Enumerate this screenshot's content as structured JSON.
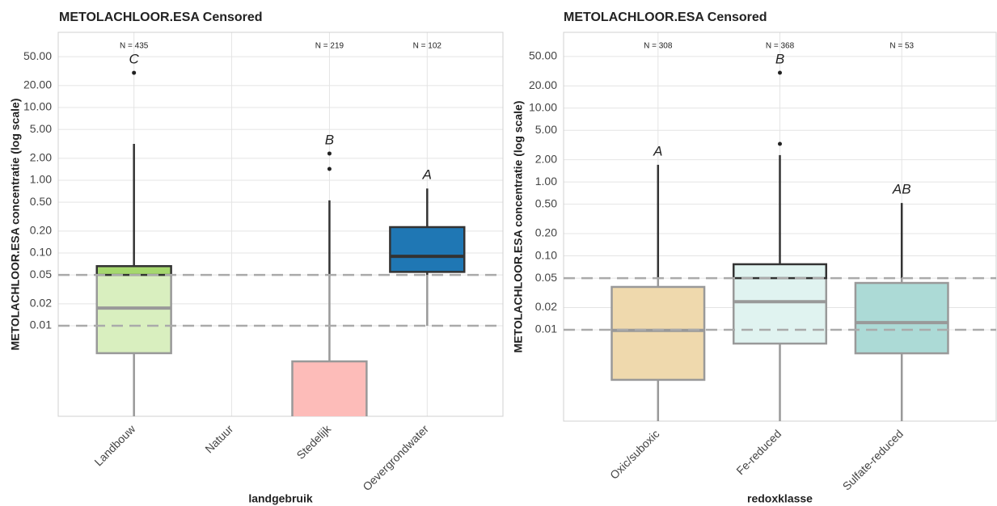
{
  "chart_data": [
    {
      "type": "box",
      "title": "METOLACHLOOR.ESA Censored",
      "x_label": "landgebruik",
      "y_label": "METOLACHLOOR.ESA concentratie (log scale)",
      "log_scale": true,
      "grid": true,
      "ylim": [
        0.00057,
        108
      ],
      "yticks": [
        {
          "value": 50,
          "label": "50.00"
        },
        {
          "value": 20,
          "label": "20.00"
        },
        {
          "value": 10,
          "label": "10.00"
        },
        {
          "value": 5,
          "label": "5.00"
        },
        {
          "value": 2,
          "label": "2.00"
        },
        {
          "value": 1,
          "label": "1.00"
        },
        {
          "value": 0.5,
          "label": "0.50"
        },
        {
          "value": 0.2,
          "label": "0.20"
        },
        {
          "value": 0.1,
          "label": "0.10"
        },
        0.05,
        0.02,
        0.01
      ],
      "reference_lines": [
        0.05,
        0.01
      ],
      "categories": [
        "Landbouw",
        "Natuur",
        "Stedelijk",
        "Oevergrondwater"
      ],
      "n_labels": [
        "N = 435",
        null,
        "N = 219",
        "N = 102"
      ],
      "letters": [
        "C",
        null,
        "B",
        "A"
      ],
      "whisker_low": [
        0.00057,
        null,
        null,
        0.01
      ],
      "q1": [
        0.0042,
        null,
        null,
        0.055
      ],
      "median": [
        0.0175,
        null,
        null,
        0.09
      ],
      "q3": [
        0.066,
        null,
        0.00324,
        0.227
      ],
      "whisker_high": [
        3.16,
        null,
        0.53,
        0.77
      ],
      "outliers": [
        [
          30
        ],
        [],
        [
          1.43,
          2.33
        ],
        []
      ],
      "colors": [
        "#d9efbf",
        null,
        "#fdbcb9",
        "#1f77b4"
      ],
      "colors_detected": [
        "#a6d86e",
        null,
        "#fdbcb9",
        "#1f77b4"
      ]
    },
    {
      "type": "box",
      "title": "METOLACHLOOR.ESA Censored",
      "x_label": "redoxklasse",
      "y_label": "METOLACHLOOR.ESA concentratie (log scale)",
      "log_scale": true,
      "grid": true,
      "ylim": [
        0.00058,
        106
      ],
      "yticks": [
        {
          "value": 50,
          "label": "50.00"
        },
        {
          "value": 20,
          "label": "20.00"
        },
        {
          "value": 10,
          "label": "10.00"
        },
        {
          "value": 5,
          "label": "5.00"
        },
        {
          "value": 2,
          "label": "2.00"
        },
        {
          "value": 1,
          "label": "1.00"
        },
        {
          "value": 0.5,
          "label": "0.50"
        },
        {
          "value": 0.2,
          "label": "0.20"
        },
        {
          "value": 0.1,
          "label": "0.10"
        },
        0.05,
        0.02,
        0.01
      ],
      "reference_lines": [
        0.05,
        0.01
      ],
      "categories": [
        "Oxic/suboxic",
        "Fe-reduced",
        "Sulfate-reduced"
      ],
      "n_labels": [
        "N = 308",
        "N = 368",
        "N = 53"
      ],
      "letters": [
        "A",
        "B",
        "AB"
      ],
      "whisker_low": [
        0.00058,
        0.00058,
        0.00058
      ],
      "q1": [
        0.0021,
        0.0065,
        0.0048
      ],
      "median": [
        0.0098,
        0.024,
        0.0125
      ],
      "q3": [
        0.038,
        0.077,
        0.043
      ],
      "whisker_high": [
        1.71,
        2.31,
        0.52
      ],
      "outliers": [
        [],
        [
          3.28,
          30.1
        ],
        []
      ],
      "colors": [
        "#efd9ad",
        "#e0f3f0",
        "#acdad6"
      ],
      "colors_detected": [
        "#efd9ad",
        "#e0f3f0",
        "#acdad6"
      ]
    }
  ]
}
